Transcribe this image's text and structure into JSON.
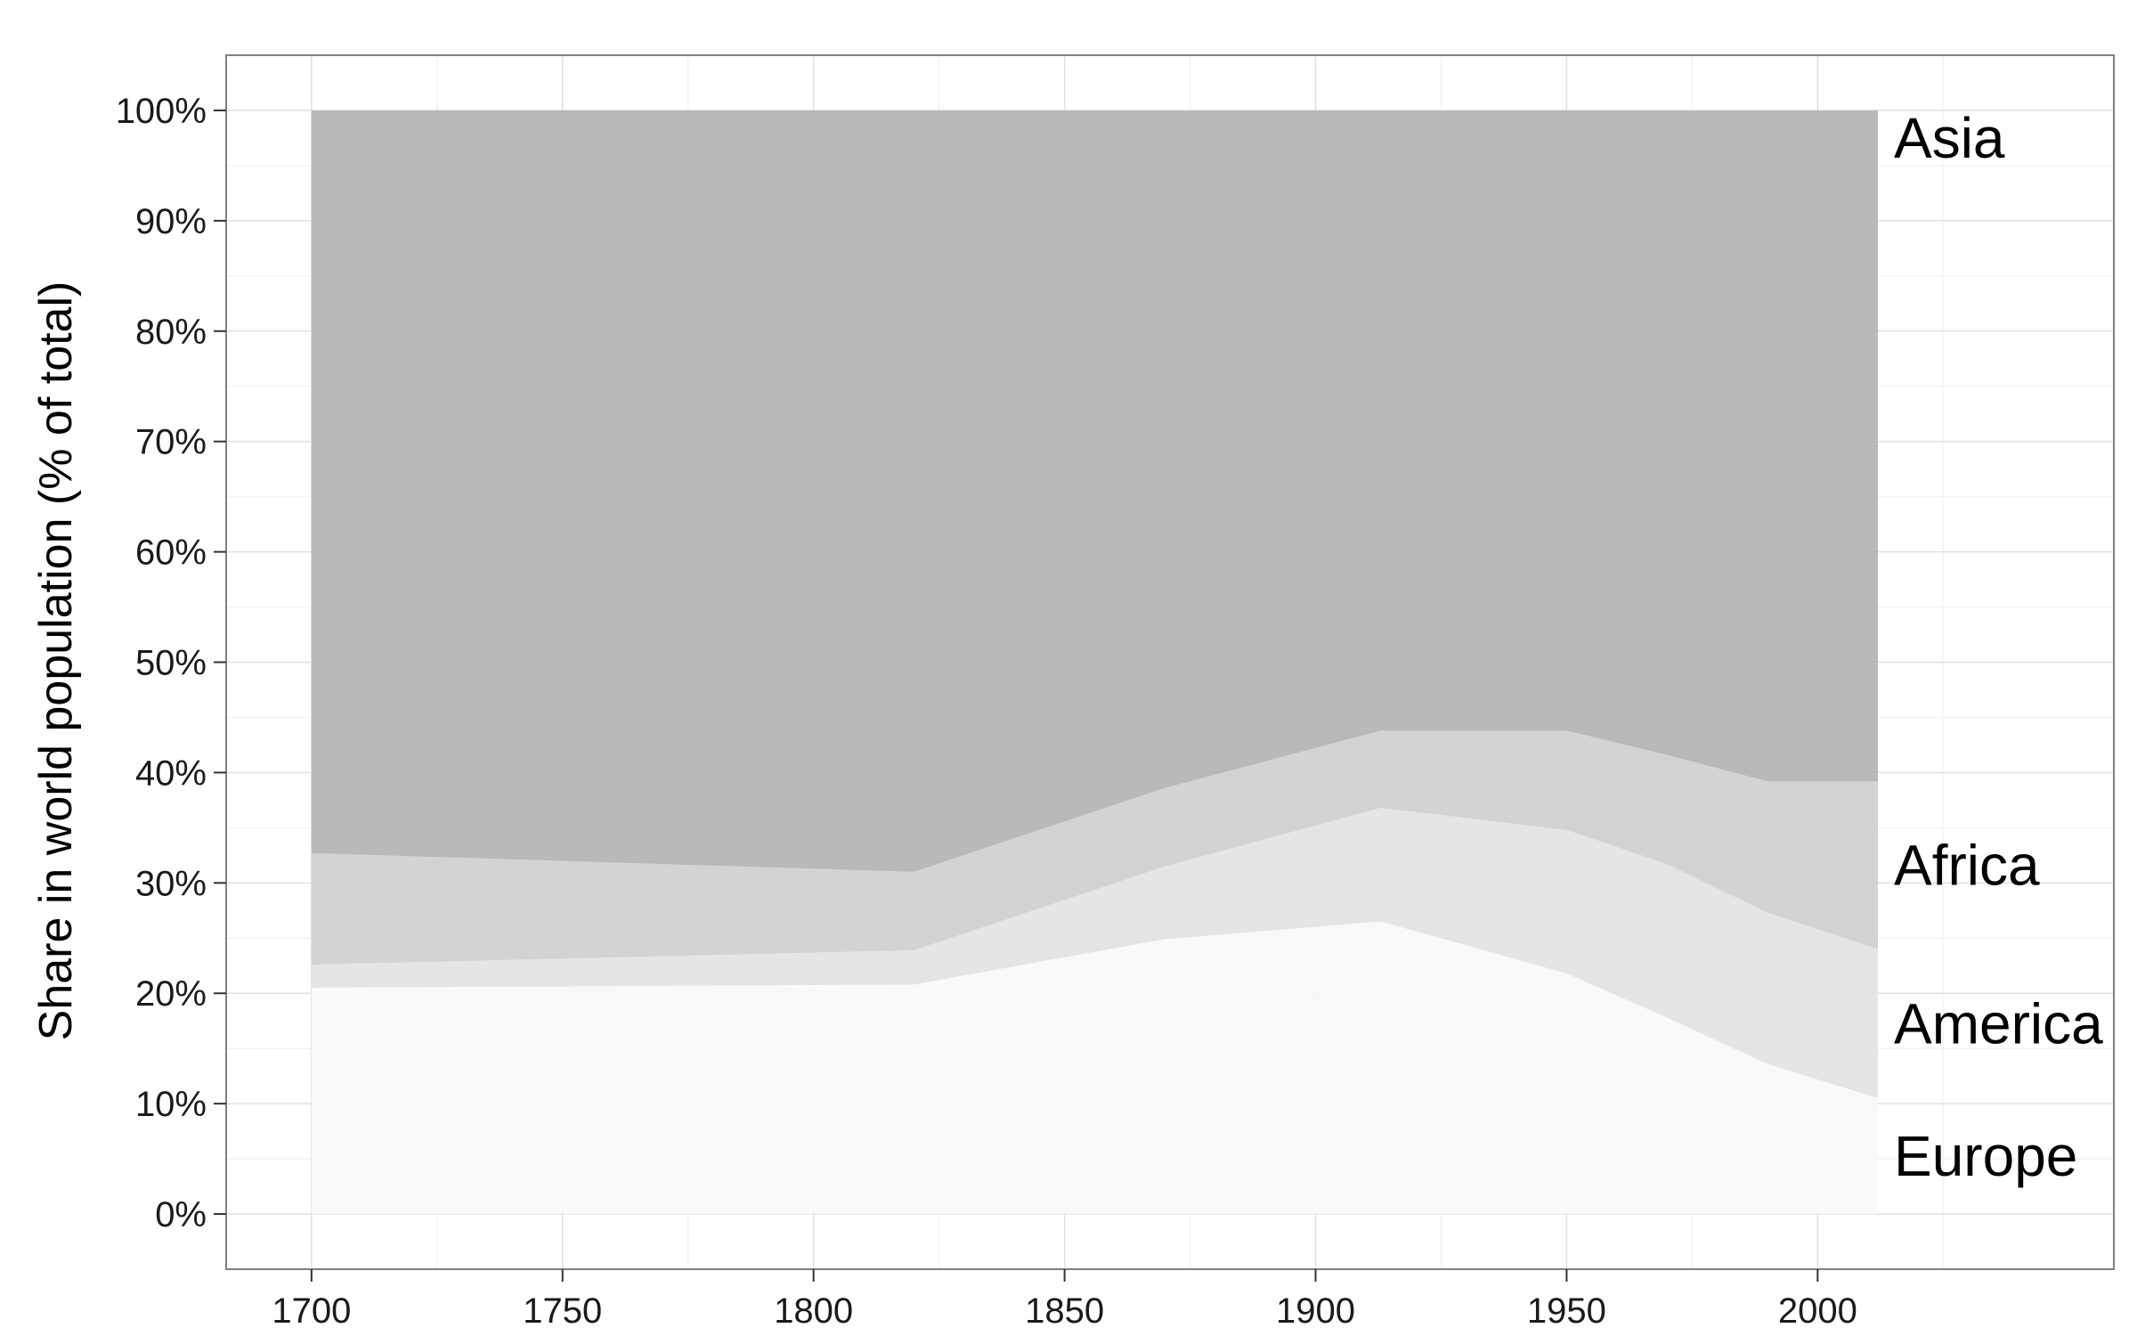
{
  "chart_data": {
    "type": "area",
    "stacked": true,
    "xlabel": "",
    "ylabel": "Share in world population (% of total)",
    "xlim": [
      1683,
      2059
    ],
    "ylim": [
      -5,
      105
    ],
    "x_ticks": [
      1700,
      1750,
      1800,
      1850,
      1900,
      1950,
      2000
    ],
    "x_tick_labels": [
      "1700",
      "1750",
      "1800",
      "1850",
      "1900",
      "1950",
      "2000"
    ],
    "y_ticks": [
      0,
      10,
      20,
      30,
      40,
      50,
      60,
      70,
      80,
      90,
      100
    ],
    "y_tick_labels": [
      "0%",
      "10%",
      "20%",
      "30%",
      "40%",
      "50%",
      "60%",
      "70%",
      "80%",
      "90%",
      "100%"
    ],
    "grid": true,
    "legend": "direct labels at right end of each series",
    "x": [
      1700,
      1820,
      1870,
      1913,
      1950,
      1970,
      1990,
      2012
    ],
    "series": [
      {
        "name": "Europe",
        "color": "#f9f9f9",
        "values": [
          20.5,
          20.8,
          24.9,
          26.5,
          21.8,
          17.8,
          13.6,
          10.5
        ]
      },
      {
        "name": "America",
        "color": "#e3e3e3",
        "values": [
          2.1,
          3.1,
          6.6,
          10.3,
          13.0,
          13.9,
          13.7,
          13.5
        ]
      },
      {
        "name": "Africa",
        "color": "#cfcfcf",
        "values": [
          10.1,
          7.1,
          7.1,
          7.0,
          9.0,
          9.9,
          11.9,
          15.2
        ]
      },
      {
        "name": "Asia",
        "color": "#b3b3b3",
        "values": [
          67.3,
          69.0,
          61.4,
          56.2,
          56.2,
          58.4,
          60.8,
          60.8
        ]
      }
    ],
    "panel_border_color": "#7f7f7f",
    "grid_major_color": "#e0e0e0",
    "grid_minor_color": "#f3f3f3"
  }
}
